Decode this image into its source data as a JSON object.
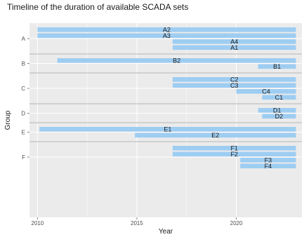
{
  "chart_data": {
    "type": "bar",
    "orientation": "horizontal",
    "title": "Timeline of the duration of available SCADA sets",
    "xlabel": "Year",
    "ylabel": "Group",
    "xlim": [
      2009.6,
      2023.3
    ],
    "xticks": [
      2010,
      2015,
      2020
    ],
    "grid": true,
    "colors": {
      "bar": "#9ecdf2",
      "panel": "#ebebeb",
      "grid": "#ffffff",
      "separator": "#c8c8c8"
    },
    "groups": [
      {
        "name": "A",
        "sets": [
          {
            "label": "A2",
            "start": 2010.0,
            "end": 2023.0
          },
          {
            "label": "A3",
            "start": 2010.0,
            "end": 2023.0
          },
          {
            "label": "A4",
            "start": 2016.8,
            "end": 2023.0
          },
          {
            "label": "A1",
            "start": 2016.8,
            "end": 2023.0
          }
        ]
      },
      {
        "name": "B",
        "sets": [
          {
            "label": "B2",
            "start": 2011.0,
            "end": 2023.0
          },
          {
            "label": "B1",
            "start": 2021.1,
            "end": 2023.0
          }
        ]
      },
      {
        "name": "C",
        "sets": [
          {
            "label": "C2",
            "start": 2016.8,
            "end": 2023.0
          },
          {
            "label": "C3",
            "start": 2016.8,
            "end": 2023.0
          },
          {
            "label": "C4",
            "start": 2020.0,
            "end": 2023.0
          },
          {
            "label": "C1",
            "start": 2021.3,
            "end": 2023.0
          }
        ]
      },
      {
        "name": "D",
        "sets": [
          {
            "label": "D1",
            "start": 2021.1,
            "end": 2023.0
          },
          {
            "label": "D2",
            "start": 2021.3,
            "end": 2023.0
          }
        ]
      },
      {
        "name": "E",
        "sets": [
          {
            "label": "E1",
            "start": 2010.1,
            "end": 2023.0
          },
          {
            "label": "E2",
            "start": 2014.9,
            "end": 2023.0
          }
        ]
      },
      {
        "name": "F",
        "sets": [
          {
            "label": "F1",
            "start": 2016.8,
            "end": 2023.0
          },
          {
            "label": "F2",
            "start": 2016.8,
            "end": 2023.0
          },
          {
            "label": "F3",
            "start": 2020.2,
            "end": 2023.0
          },
          {
            "label": "F4",
            "start": 2020.2,
            "end": 2023.0
          }
        ]
      }
    ]
  }
}
